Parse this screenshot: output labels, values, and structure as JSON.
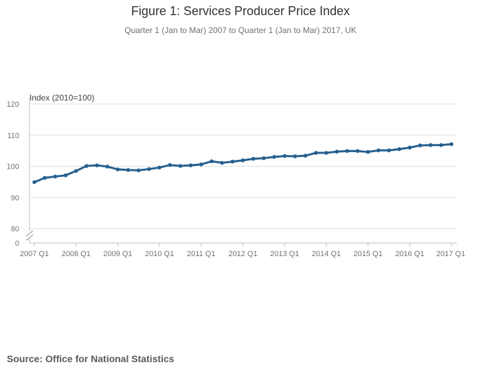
{
  "chart_data": {
    "type": "line",
    "title": "Figure 1: Services Producer Price Index",
    "subtitle": "Quarter 1 (Jan to Mar) 2007 to Quarter 1 (Jan to Mar) 2017, UK",
    "ylabel": "Index (2010=100)",
    "source": "Source: Office for National Statistics",
    "ylim": [
      80,
      120
    ],
    "y_break_label": "0",
    "y_ticks": [
      "80",
      "90",
      "100",
      "110",
      "120"
    ],
    "x_tick_labels": [
      "2007 Q1",
      "2008 Q1",
      "2009 Q1",
      "2010 Q1",
      "2011 Q1",
      "2012 Q1",
      "2013 Q1",
      "2014 Q1",
      "2015 Q1",
      "2016 Q1",
      "2017 Q1"
    ],
    "grid": true,
    "line_color": "#27608e",
    "series": [
      {
        "values": [
          94.9,
          96.3,
          96.7,
          97.1,
          98.5,
          100.1,
          100.3,
          99.9,
          99.0,
          98.8,
          98.7,
          99.1,
          99.6,
          100.4,
          100.1,
          100.3,
          100.6,
          101.6,
          101.1,
          101.5,
          101.9,
          102.4,
          102.6,
          103.0,
          103.3,
          103.2,
          103.4,
          104.3,
          104.3,
          104.7,
          104.9,
          104.9,
          104.6,
          105.1,
          105.1,
          105.5,
          106.0,
          106.7,
          106.8,
          106.8,
          107.1
        ]
      }
    ]
  }
}
